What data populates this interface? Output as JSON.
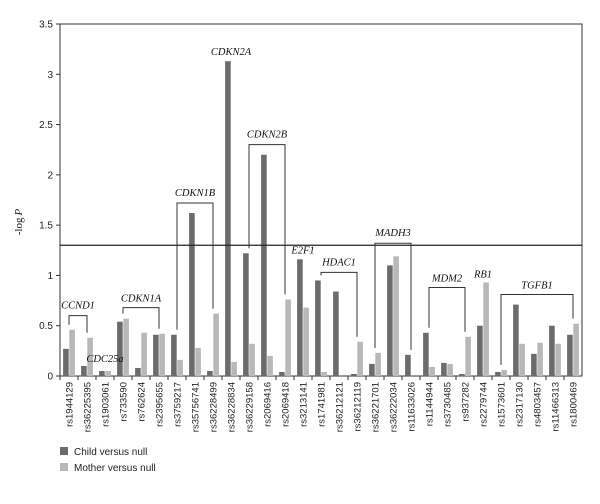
{
  "chart_data": {
    "type": "bar",
    "ylabel_prefix": "-log",
    "ylabel_var": "P",
    "ylim": [
      0,
      3.5
    ],
    "yticks": [
      "0",
      "0.5",
      "1",
      "1.5",
      "2",
      "2.5",
      "3",
      "3.5"
    ],
    "threshold": 1.3,
    "categories": [
      "rs1944129",
      "rs36225395",
      "rs1903061",
      "rs733590",
      "rs762624",
      "rs2395655",
      "rs3759217",
      "rs35756741",
      "rs36228499",
      "rs36228834",
      "rs36229158",
      "rs2069416",
      "rs2069418",
      "rs3213141",
      "rs1741981",
      "rs36212121",
      "rs36212119",
      "rs36221701",
      "rs36222034",
      "rs11633026",
      "rs1144944",
      "rs3730485",
      "rs937282",
      "rs2279744",
      "rs1573601",
      "rs2317130",
      "rs4803457",
      "rs11466313",
      "rs1800469"
    ],
    "series": [
      {
        "name": "Child versus null",
        "color": "#6b6b6b",
        "values": [
          0.27,
          0.1,
          0.05,
          0.54,
          0.08,
          0.41,
          0.41,
          1.62,
          0.05,
          3.13,
          1.22,
          2.2,
          0.04,
          1.16,
          0.95,
          0.84,
          0.02,
          0.12,
          1.1,
          0.21,
          0.43,
          0.13,
          0.02,
          0.5,
          0.04,
          0.71,
          0.22,
          0.5,
          0.41
        ]
      },
      {
        "name": "Mother versus null",
        "color": "#b8b8b8",
        "values": [
          0.46,
          0.38,
          0.05,
          0.57,
          0.43,
          0.42,
          0.16,
          0.28,
          0.62,
          0.14,
          0.32,
          0.2,
          0.76,
          0.68,
          0.04,
          0.0,
          0.34,
          0.23,
          1.19,
          0.0,
          0.09,
          0.12,
          0.39,
          0.93,
          0.06,
          0.32,
          0.33,
          0.32,
          0.52
        ]
      }
    ],
    "gene_labels": [
      {
        "text": "CCND1",
        "from": 0,
        "to": 1,
        "top": 0.6,
        "label_y": 0.65
      },
      {
        "text": "CDC25a",
        "from": 2,
        "to": 2,
        "top": null,
        "label_y": 0.12
      },
      {
        "text": "CDKN1A",
        "from": 3,
        "to": 5,
        "top": 0.68,
        "label_y": 0.72
      },
      {
        "text": "CDKN1B",
        "from": 6,
        "to": 8,
        "top": 1.72,
        "label_y": 1.77
      },
      {
        "text": "CDKN2A",
        "from": 9,
        "to": 9,
        "top": null,
        "label_y": 3.17
      },
      {
        "text": "CDKN2B",
        "from": 10,
        "to": 12,
        "top": 2.3,
        "label_y": 2.35
      },
      {
        "text": "E2F1",
        "from": 13,
        "to": 13,
        "top": null,
        "label_y": 1.2
      },
      {
        "text": "HDAC1",
        "from": 14,
        "to": 16,
        "top": 1.03,
        "label_y": 1.08
      },
      {
        "text": "MADH3",
        "from": 17,
        "to": 19,
        "top": 1.32,
        "label_y": 1.37
      },
      {
        "text": "MDM2",
        "from": 20,
        "to": 22,
        "top": 0.88,
        "label_y": 0.92
      },
      {
        "text": "RB1",
        "from": 23,
        "to": 23,
        "top": null,
        "label_y": 0.96
      },
      {
        "text": "TGFB1",
        "from": 24,
        "to": 28,
        "top": 0.81,
        "label_y": 0.85
      }
    ],
    "legend": [
      {
        "label": "Child versus null",
        "color": "#6b6b6b"
      },
      {
        "label": "Mother versus null",
        "color": "#b8b8b8"
      }
    ]
  }
}
